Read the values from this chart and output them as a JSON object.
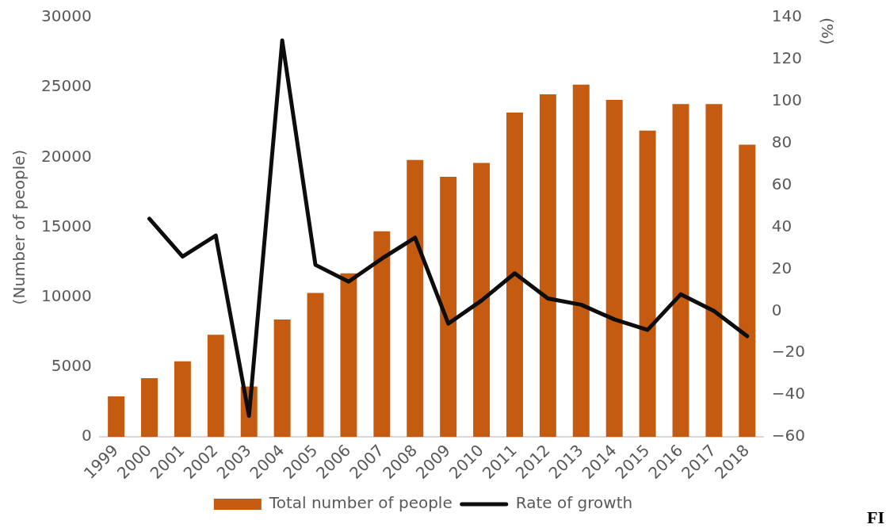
{
  "chart_data": {
    "type": "bar",
    "categories": [
      "1999",
      "2000",
      "2001",
      "2002",
      "2003",
      "2004",
      "2005",
      "2006",
      "2007",
      "2008",
      "2009",
      "2010",
      "2011",
      "2012",
      "2013",
      "2014",
      "2015",
      "2016",
      "2017",
      "2018"
    ],
    "ylabel": "(Number of people)",
    "y2label": "(%)",
    "ylim": [
      0,
      30000
    ],
    "yticks": [
      0,
      5000,
      10000,
      15000,
      20000,
      25000,
      30000
    ],
    "y2lim": [
      -60,
      140
    ],
    "y2ticks": [
      -60,
      -40,
      -20,
      0,
      20,
      40,
      60,
      80,
      100,
      120,
      140
    ],
    "series": [
      {
        "name": "Total number of people",
        "color": "#c55a11",
        "values": [
          2900,
          4200,
          5400,
          7300,
          3600,
          8400,
          10300,
          11700,
          14700,
          19800,
          18600,
          19600,
          23200,
          24500,
          25200,
          24100,
          21900,
          23800,
          23800,
          20900
        ]
      },
      {
        "name": "Rate of growth",
        "type": "line",
        "axis": "y2",
        "color": "#0d0d0d",
        "marker": "none",
        "line_style": "solid",
        "values": [
          null,
          44,
          26,
          36,
          -50,
          129,
          22,
          14,
          25,
          35,
          -6,
          5,
          18,
          6,
          3,
          -4,
          -9,
          8,
          0,
          -12
        ]
      }
    ],
    "grid": false,
    "legend": "bottom",
    "annotations": [
      "FI"
    ]
  }
}
